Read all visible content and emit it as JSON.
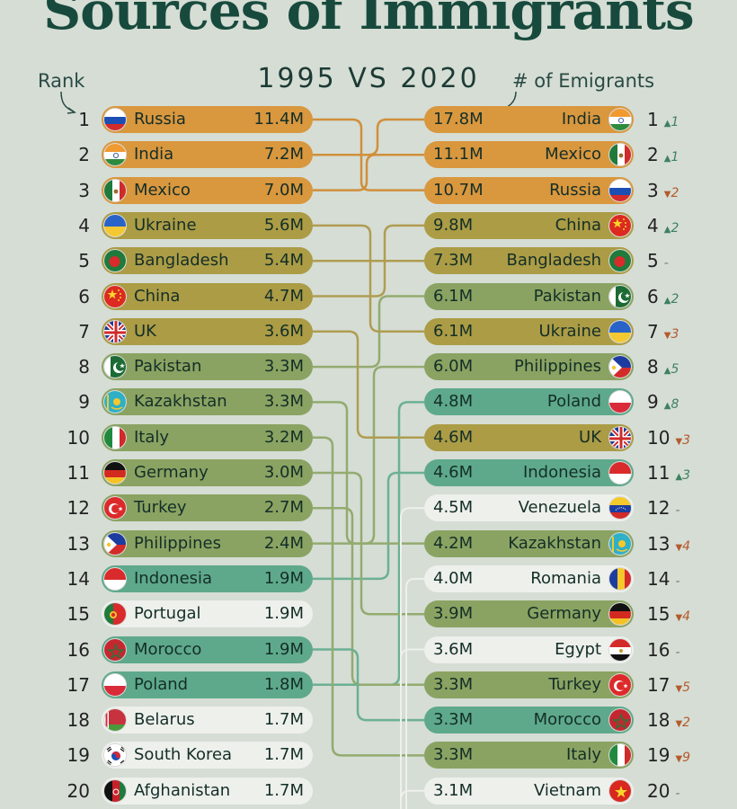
{
  "title": "Sources of Immigrants",
  "subtitle": "1995 VS 2020",
  "rank_label": "Rank",
  "emigrants_label": "# of Emigrants",
  "colors": {
    "orange": "#d9973e",
    "olive": "#ab9c45",
    "green": "#8aa362",
    "teal": "#5ea98b",
    "light": "#eef0ec"
  },
  "chart_data": {
    "type": "table",
    "left_year": "1995",
    "right_year": "2020",
    "left": [
      {
        "rank": "1",
        "country": "Russia",
        "value": "11.4M",
        "flag": "russia",
        "color": "orange"
      },
      {
        "rank": "2",
        "country": "India",
        "value": "7.2M",
        "flag": "india",
        "color": "orange"
      },
      {
        "rank": "3",
        "country": "Mexico",
        "value": "7.0M",
        "flag": "mexico",
        "color": "orange"
      },
      {
        "rank": "4",
        "country": "Ukraine",
        "value": "5.6M",
        "flag": "ukraine",
        "color": "olive"
      },
      {
        "rank": "5",
        "country": "Bangladesh",
        "value": "5.4M",
        "flag": "bangladesh",
        "color": "olive"
      },
      {
        "rank": "6",
        "country": "China",
        "value": "4.7M",
        "flag": "china",
        "color": "olive"
      },
      {
        "rank": "7",
        "country": "UK",
        "value": "3.6M",
        "flag": "uk",
        "color": "olive"
      },
      {
        "rank": "8",
        "country": "Pakistan",
        "value": "3.3M",
        "flag": "pakistan",
        "color": "green"
      },
      {
        "rank": "9",
        "country": "Kazakhstan",
        "value": "3.3M",
        "flag": "kazakhstan",
        "color": "green"
      },
      {
        "rank": "10",
        "country": "Italy",
        "value": "3.2M",
        "flag": "italy",
        "color": "green"
      },
      {
        "rank": "11",
        "country": "Germany",
        "value": "3.0M",
        "flag": "germany",
        "color": "green"
      },
      {
        "rank": "12",
        "country": "Turkey",
        "value": "2.7M",
        "flag": "turkey",
        "color": "green"
      },
      {
        "rank": "13",
        "country": "Philippines",
        "value": "2.4M",
        "flag": "philippines",
        "color": "green"
      },
      {
        "rank": "14",
        "country": "Indonesia",
        "value": "1.9M",
        "flag": "indonesia",
        "color": "teal"
      },
      {
        "rank": "15",
        "country": "Portugal",
        "value": "1.9M",
        "flag": "portugal",
        "color": "light"
      },
      {
        "rank": "16",
        "country": "Morocco",
        "value": "1.9M",
        "flag": "morocco",
        "color": "teal"
      },
      {
        "rank": "17",
        "country": "Poland",
        "value": "1.8M",
        "flag": "poland",
        "color": "teal"
      },
      {
        "rank": "18",
        "country": "Belarus",
        "value": "1.7M",
        "flag": "belarus",
        "color": "light"
      },
      {
        "rank": "19",
        "country": "South Korea",
        "value": "1.7M",
        "flag": "korea",
        "color": "light"
      },
      {
        "rank": "20",
        "country": "Afghanistan",
        "value": "1.7M",
        "flag": "afghanistan",
        "color": "light"
      }
    ],
    "right": [
      {
        "rank": "1",
        "country": "India",
        "value": "17.8M",
        "flag": "india",
        "color": "orange",
        "change": "1",
        "dir": "up"
      },
      {
        "rank": "2",
        "country": "Mexico",
        "value": "11.1M",
        "flag": "mexico",
        "color": "orange",
        "change": "1",
        "dir": "up"
      },
      {
        "rank": "3",
        "country": "Russia",
        "value": "10.7M",
        "flag": "russia",
        "color": "orange",
        "change": "2",
        "dir": "down"
      },
      {
        "rank": "4",
        "country": "China",
        "value": "9.8M",
        "flag": "china",
        "color": "olive",
        "change": "2",
        "dir": "up"
      },
      {
        "rank": "5",
        "country": "Bangladesh",
        "value": "7.3M",
        "flag": "bangladesh",
        "color": "olive",
        "change": "-",
        "dir": "same"
      },
      {
        "rank": "6",
        "country": "Pakistan",
        "value": "6.1M",
        "flag": "pakistan",
        "color": "green",
        "change": "2",
        "dir": "up"
      },
      {
        "rank": "7",
        "country": "Ukraine",
        "value": "6.1M",
        "flag": "ukraine",
        "color": "olive",
        "change": "3",
        "dir": "down"
      },
      {
        "rank": "8",
        "country": "Philippines",
        "value": "6.0M",
        "flag": "philippines",
        "color": "green",
        "change": "5",
        "dir": "up"
      },
      {
        "rank": "9",
        "country": "Poland",
        "value": "4.8M",
        "flag": "poland",
        "color": "teal",
        "change": "8",
        "dir": "up"
      },
      {
        "rank": "10",
        "country": "UK",
        "value": "4.6M",
        "flag": "uk",
        "color": "olive",
        "change": "3",
        "dir": "down"
      },
      {
        "rank": "11",
        "country": "Indonesia",
        "value": "4.6M",
        "flag": "indonesia",
        "color": "teal",
        "change": "3",
        "dir": "up"
      },
      {
        "rank": "12",
        "country": "Venezuela",
        "value": "4.5M",
        "flag": "venezuela",
        "color": "light",
        "change": "-",
        "dir": "same"
      },
      {
        "rank": "13",
        "country": "Kazakhstan",
        "value": "4.2M",
        "flag": "kazakhstan",
        "color": "green",
        "change": "4",
        "dir": "down"
      },
      {
        "rank": "14",
        "country": "Romania",
        "value": "4.0M",
        "flag": "romania",
        "color": "light",
        "change": "-",
        "dir": "same"
      },
      {
        "rank": "15",
        "country": "Germany",
        "value": "3.9M",
        "flag": "germany",
        "color": "green",
        "change": "4",
        "dir": "down"
      },
      {
        "rank": "16",
        "country": "Egypt",
        "value": "3.6M",
        "flag": "egypt",
        "color": "light",
        "change": "-",
        "dir": "same"
      },
      {
        "rank": "17",
        "country": "Turkey",
        "value": "3.3M",
        "flag": "turkey",
        "color": "green",
        "change": "5",
        "dir": "down"
      },
      {
        "rank": "18",
        "country": "Morocco",
        "value": "3.3M",
        "flag": "morocco",
        "color": "teal",
        "change": "2",
        "dir": "down"
      },
      {
        "rank": "19",
        "country": "Italy",
        "value": "3.3M",
        "flag": "italy",
        "color": "green",
        "change": "9",
        "dir": "down"
      },
      {
        "rank": "20",
        "country": "Vietnam",
        "value": "3.1M",
        "flag": "vietnam",
        "color": "light",
        "change": "-",
        "dir": "same"
      }
    ]
  }
}
